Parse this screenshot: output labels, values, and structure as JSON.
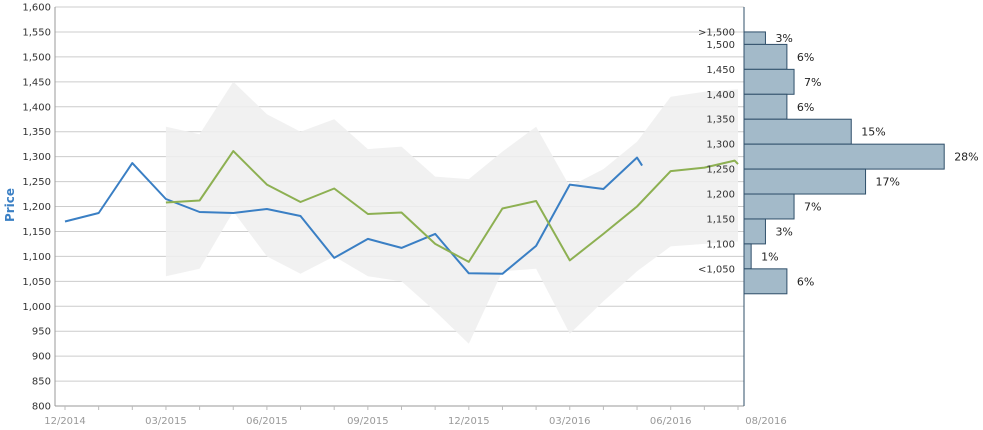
{
  "chart_data": {
    "type": "line",
    "ylabel": "Price",
    "ylim": [
      800,
      1600
    ],
    "y_ticks": [
      "800",
      "850",
      "900",
      "950",
      "1,000",
      "1,050",
      "1,100",
      "1,150",
      "1,200",
      "1,250",
      "1,300",
      "1,350",
      "1,400",
      "1,450",
      "1,500",
      "1,550",
      "1,600"
    ],
    "x_ticks": [
      {
        "label": "12/2014",
        "month": 0
      },
      {
        "label": "03/2015",
        "month": 3
      },
      {
        "label": "06/2015",
        "month": 6
      },
      {
        "label": "09/2015",
        "month": 9
      },
      {
        "label": "12/2015",
        "month": 12
      },
      {
        "label": "03/2016",
        "month": 15
      },
      {
        "label": "06/2016",
        "month": 18
      },
      {
        "label": "08/2016",
        "month": 20
      }
    ],
    "grid": true,
    "colors": {
      "actual": "#3a7fc4",
      "forecast": "#8db052",
      "band": "#eeeeee",
      "histogram": "#a3bac9",
      "histogram_edge": "#2f4f6a",
      "grid": "#cccccc"
    },
    "series": [
      {
        "key": "actual",
        "x": [
          0,
          1,
          2,
          3,
          4,
          5,
          6,
          7,
          8,
          9,
          10,
          11,
          12,
          13,
          14,
          15,
          16,
          17,
          17.15
        ],
        "values": [
          1170,
          1187,
          1287,
          1215,
          1189,
          1187,
          1195,
          1181,
          1097,
          1135,
          1117,
          1145,
          1066,
          1065,
          1121,
          1244,
          1235,
          1298,
          1282
        ]
      },
      {
        "key": "forecast",
        "x": [
          3,
          4,
          5,
          6,
          7,
          8,
          9,
          10,
          11,
          12,
          13,
          14,
          15,
          16,
          17,
          18,
          19,
          19.9,
          20
        ],
        "values": [
          1208,
          1212,
          1311,
          1244,
          1209,
          1236,
          1185,
          1188,
          1125,
          1089,
          1196,
          1211,
          1092,
          1145,
          1200,
          1271,
          1278,
          1292,
          1285
        ]
      }
    ],
    "band": {
      "x": [
        3,
        4,
        5,
        6,
        7,
        8,
        9,
        10,
        11,
        12,
        13,
        14,
        15,
        16,
        17,
        18,
        19,
        20
      ],
      "upper": [
        1360,
        1345,
        1450,
        1385,
        1350,
        1375,
        1315,
        1320,
        1260,
        1255,
        1310,
        1360,
        1240,
        1275,
        1330,
        1420,
        1430,
        1435
      ],
      "lower": [
        1060,
        1075,
        1190,
        1100,
        1065,
        1100,
        1060,
        1050,
        990,
        925,
        1070,
        1075,
        945,
        1010,
        1070,
        1120,
        1125,
        1130
      ]
    },
    "histogram": {
      "bins": [
        {
          "label": ">1,500",
          "percent": 3,
          "text": "3%",
          "low": 1525,
          "high": 1550
        },
        {
          "label": "1,500",
          "percent": 6,
          "text": "6%",
          "low": 1475,
          "high": 1525
        },
        {
          "label": "1,450",
          "percent": 7,
          "text": "7%",
          "low": 1425,
          "high": 1475
        },
        {
          "label": "1,400",
          "percent": 6,
          "text": "6%",
          "low": 1375,
          "high": 1425
        },
        {
          "label": "1,350",
          "percent": 15,
          "text": "15%",
          "low": 1325,
          "high": 1375
        },
        {
          "label": "1,300",
          "percent": 28,
          "text": "28%",
          "low": 1275,
          "high": 1325
        },
        {
          "label": "1,250",
          "percent": 17,
          "text": "17%",
          "low": 1225,
          "high": 1275
        },
        {
          "label": "1,200",
          "percent": 7,
          "text": "7%",
          "low": 1175,
          "high": 1225
        },
        {
          "label": "1,150",
          "percent": 3,
          "text": "3%",
          "low": 1125,
          "high": 1175
        },
        {
          "label": "1,100",
          "percent": 1,
          "text": "1%",
          "low": 1075,
          "high": 1125
        },
        {
          "label": "<1,050",
          "percent": 6,
          "text": "6%",
          "low": 1025,
          "high": 1075
        }
      ]
    }
  }
}
